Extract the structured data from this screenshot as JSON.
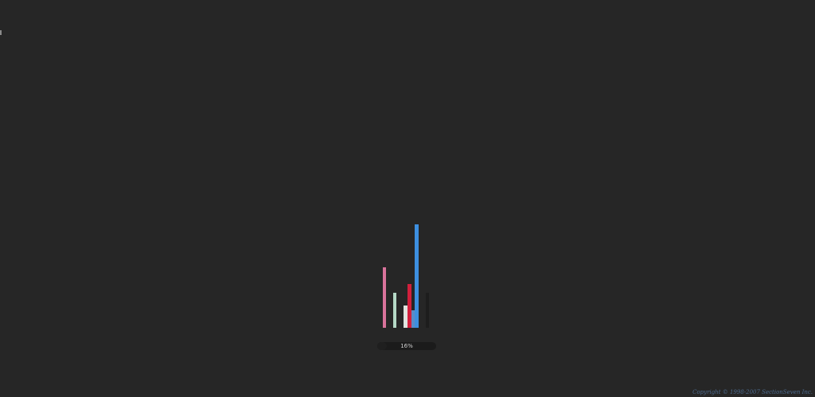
{
  "loader": {
    "progress_text": "16%",
    "progress_value": 0.16,
    "bar_colors": {
      "pink": "#d9739b",
      "mint": "#b5d9c6",
      "pale": "#dfe5e0",
      "red": "#d21f3c",
      "blue": "#3d8fe0",
      "steel": "#5a8cc8",
      "dark": "#1d1d1d"
    }
  },
  "footer": {
    "copyright": "Copyright © 1998-2007 SectionSeven Inc."
  }
}
